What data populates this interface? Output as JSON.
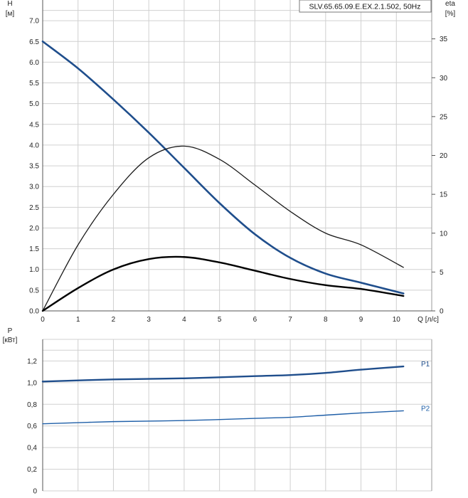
{
  "chart_data": [
    {
      "type": "line",
      "title": "SLV.65.65.09.E.EX.2.1.502, 50Hz",
      "xlabel": "Q [л/с]",
      "ylabel_left_name": "H",
      "ylabel_left_unit": "[м]",
      "ylabel_right_name": "eta",
      "ylabel_right_unit": "[%]",
      "xlim": [
        0,
        11
      ],
      "ylim_left": [
        0,
        7.5
      ],
      "ylim_right": [
        0,
        40
      ],
      "x_ticks": [
        "0",
        "1",
        "2",
        "3",
        "4",
        "5",
        "6",
        "7",
        "8",
        "9",
        "10"
      ],
      "y_left_ticks": [
        "0.0",
        "0.5",
        "1.0",
        "1.5",
        "2.0",
        "2.5",
        "3.0",
        "3.5",
        "4.0",
        "4.5",
        "5.0",
        "5.5",
        "6.0",
        "6.5",
        "7.0"
      ],
      "y_right_ticks": [
        "0",
        "5",
        "10",
        "15",
        "20",
        "25",
        "30",
        "35"
      ],
      "grid": true,
      "series": [
        {
          "axis": "left",
          "color": "#1f4e8c",
          "x": [
            0,
            1,
            2,
            3,
            4,
            5,
            6,
            7,
            8,
            9,
            10.2
          ],
          "values": [
            6.5,
            5.85,
            5.1,
            4.3,
            3.45,
            2.6,
            1.85,
            1.28,
            0.9,
            0.68,
            0.42
          ]
        },
        {
          "axis": "right",
          "color": "#1a1a1a",
          "x": [
            0,
            1,
            2,
            3,
            4,
            5,
            6,
            7,
            8,
            9,
            10.2
          ],
          "values": [
            0,
            8.5,
            15.0,
            19.7,
            21.2,
            19.5,
            16.2,
            12.8,
            10.0,
            8.5,
            5.6
          ]
        },
        {
          "axis": "left",
          "color": "#000000",
          "x": [
            0,
            1,
            2,
            3,
            4,
            5,
            6,
            7,
            8,
            9,
            10.2
          ],
          "values": [
            0,
            0.55,
            1.0,
            1.25,
            1.3,
            1.17,
            0.97,
            0.77,
            0.62,
            0.53,
            0.36
          ]
        }
      ]
    },
    {
      "type": "line",
      "ylabel_name": "P",
      "ylabel_unit": "[кВт]",
      "ylim": [
        0,
        1.4
      ],
      "y_ticks": [
        "0",
        "0,2",
        "0,4",
        "0,6",
        "0,8",
        "1,0",
        "1,2"
      ],
      "series": [
        {
          "name": "P1",
          "color": "#1f4e8c",
          "x": [
            0,
            2,
            4,
            6,
            7,
            8,
            9,
            10.2
          ],
          "values": [
            1.01,
            1.03,
            1.04,
            1.06,
            1.07,
            1.09,
            1.12,
            1.15
          ]
        },
        {
          "name": "P2",
          "color": "#1f5fa8",
          "x": [
            0,
            2,
            4,
            6,
            7,
            8,
            9,
            10.2
          ],
          "values": [
            0.62,
            0.64,
            0.65,
            0.67,
            0.68,
            0.7,
            0.72,
            0.74
          ]
        }
      ]
    }
  ]
}
